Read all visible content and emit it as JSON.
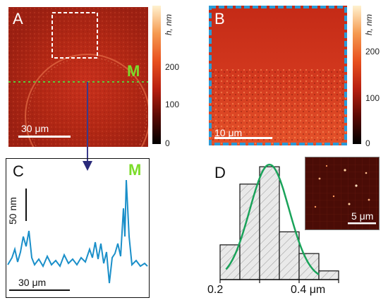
{
  "panels": {
    "A": {
      "letter": "A",
      "scale_label": "30 μm",
      "marker": "M"
    },
    "B": {
      "letter": "B",
      "scale_label": "10 μm"
    },
    "C": {
      "letter": "C",
      "scale_y_label": "50 nm",
      "scale_x_label": "30 μm",
      "marker": "M"
    },
    "D": {
      "letter": "D",
      "inset_scale_label": "5 μm"
    }
  },
  "colorbar_A": {
    "unit": "h, nm",
    "ticks": [
      "200",
      "100",
      "0"
    ]
  },
  "colorbar_B": {
    "unit": "h, nm",
    "ticks": [
      "200",
      "100",
      "0"
    ]
  },
  "colors": {
    "dashed_box": "#2a9ad6",
    "profile_line": "#1a8fc9",
    "fit_curve": "#1aa35a",
    "marker_green": "#7cdc2a",
    "arrow": "#3a3a8a"
  },
  "chart_data": {
    "type": "bar",
    "x_ticks": [
      "0.2",
      "0.4 μm"
    ],
    "xlim": [
      0.2,
      0.5
    ],
    "bin_edges": [
      0.2,
      0.25,
      0.3,
      0.35,
      0.4,
      0.45,
      0.5
    ],
    "values": [
      8,
      22,
      26,
      11,
      6,
      2
    ],
    "fit": "gaussian",
    "fit_center": 0.325,
    "fit_sigma": 0.05,
    "fit_peak": 26.5
  }
}
